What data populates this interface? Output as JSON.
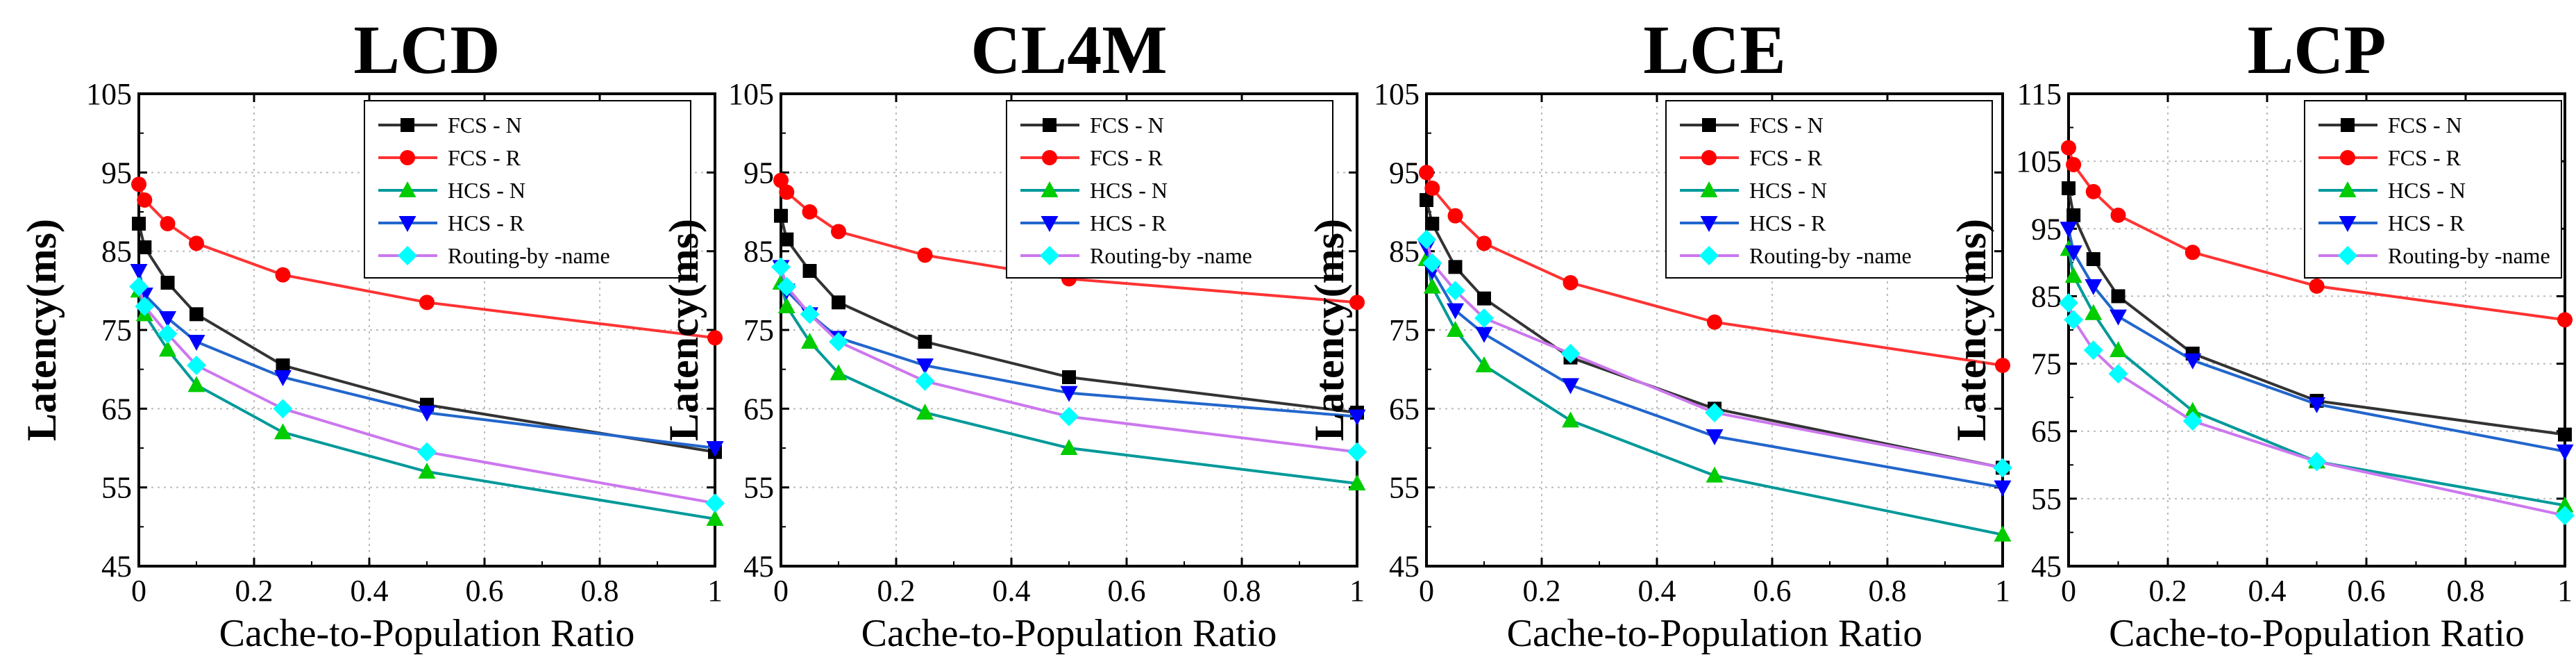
{
  "chart_data": [
    {
      "type": "line",
      "title": "LCD",
      "xlabel": "Cache-to-Population Ratio",
      "ylabel": "Latency(ms)",
      "xlim": [
        0,
        1
      ],
      "ylim": [
        45,
        105
      ],
      "xticks": [
        0,
        0.2,
        0.4,
        0.6,
        0.8,
        1
      ],
      "xtick_labels": [
        "0",
        "0.2",
        "0.4",
        "0.6",
        "0.8",
        "1"
      ],
      "yticks": [
        45,
        55,
        65,
        75,
        85,
        95,
        105
      ],
      "ytick_labels": [
        "45",
        "55",
        "65",
        "75",
        "85",
        "95",
        "105"
      ],
      "x": [
        0,
        0.01,
        0.05,
        0.1,
        0.25,
        0.5,
        1
      ],
      "series": [
        {
          "name": "FCS - N",
          "values": [
            88.5,
            85.5,
            81,
            77,
            70.5,
            65.5,
            59.5
          ]
        },
        {
          "name": "FCS - R",
          "values": [
            93.5,
            91.5,
            88.5,
            86,
            82,
            78.5,
            74
          ]
        },
        {
          "name": "HCS - N",
          "values": [
            80,
            77,
            72.5,
            68,
            62,
            57,
            51
          ]
        },
        {
          "name": "HCS - R",
          "values": [
            82.5,
            79.5,
            76.5,
            73.5,
            69,
            64.5,
            60
          ]
        },
        {
          "name": "Routing-by -name",
          "values": [
            80.5,
            78,
            74.5,
            70.5,
            65,
            59.5,
            53
          ]
        }
      ],
      "legend": "top-right"
    },
    {
      "type": "line",
      "title": "CL4M",
      "xlabel": "Cache-to-Population Ratio",
      "ylabel": "Latency(ms)",
      "xlim": [
        0,
        1
      ],
      "ylim": [
        45,
        105
      ],
      "xticks": [
        0,
        0.2,
        0.4,
        0.6,
        0.8,
        1
      ],
      "xtick_labels": [
        "0",
        "0.2",
        "0.4",
        "0.6",
        "0.8",
        "1"
      ],
      "yticks": [
        45,
        55,
        65,
        75,
        85,
        95,
        105
      ],
      "ytick_labels": [
        "45",
        "55",
        "65",
        "75",
        "85",
        "95",
        "105"
      ],
      "x": [
        0,
        0.01,
        0.05,
        0.1,
        0.25,
        0.5,
        1
      ],
      "series": [
        {
          "name": "FCS - N",
          "values": [
            89.5,
            86.5,
            82.5,
            78.5,
            73.5,
            69,
            64.5
          ]
        },
        {
          "name": "FCS - R",
          "values": [
            94,
            92.5,
            90,
            87.5,
            84.5,
            81.5,
            78.5
          ]
        },
        {
          "name": "HCS - N",
          "values": [
            81,
            78,
            73.5,
            69.5,
            64.5,
            60,
            55.5
          ]
        },
        {
          "name": "HCS - R",
          "values": [
            83,
            80,
            77,
            74,
            70.5,
            67,
            64
          ]
        },
        {
          "name": "Routing-by -name",
          "values": [
            83,
            80.5,
            77,
            73.5,
            68.5,
            64,
            59.5
          ]
        }
      ],
      "legend": "top-right"
    },
    {
      "type": "line",
      "title": "LCE",
      "xlabel": "Cache-to-Population Ratio",
      "ylabel": "Latency(ms)",
      "xlim": [
        0,
        1
      ],
      "ylim": [
        45,
        105
      ],
      "xticks": [
        0,
        0.2,
        0.4,
        0.6,
        0.8,
        1
      ],
      "xtick_labels": [
        "0",
        "0.2",
        "0.4",
        "0.6",
        "0.8",
        "1"
      ],
      "yticks": [
        45,
        55,
        65,
        75,
        85,
        95,
        105
      ],
      "ytick_labels": [
        "45",
        "55",
        "65",
        "75",
        "85",
        "95",
        "105"
      ],
      "x": [
        0,
        0.01,
        0.05,
        0.1,
        0.25,
        0.5,
        1
      ],
      "series": [
        {
          "name": "FCS - N",
          "values": [
            91.5,
            88.5,
            83,
            79,
            71.5,
            65,
            57.5
          ]
        },
        {
          "name": "FCS - R",
          "values": [
            95,
            93,
            89.5,
            86,
            81,
            76,
            70.5
          ]
        },
        {
          "name": "HCS - N",
          "values": [
            84,
            80.5,
            75,
            70.5,
            63.5,
            56.5,
            49
          ]
        },
        {
          "name": "HCS - R",
          "values": [
            85.5,
            82.5,
            77.5,
            74.5,
            68,
            61.5,
            55
          ]
        },
        {
          "name": "Routing-by -name",
          "values": [
            86.5,
            83.5,
            80,
            76.5,
            72,
            64.5,
            57.5
          ]
        }
      ],
      "legend": "top-right"
    },
    {
      "type": "line",
      "title": "LCP",
      "xlabel": "Cache-to-Population Ratio",
      "ylabel": "Latency(ms)",
      "xlim": [
        0,
        1
      ],
      "ylim": [
        45,
        115
      ],
      "xticks": [
        0,
        0.2,
        0.4,
        0.6,
        0.8,
        1
      ],
      "xtick_labels": [
        "0",
        "0.2",
        "0.4",
        "0.6",
        "0.8",
        "1"
      ],
      "yticks": [
        45,
        55,
        65,
        75,
        85,
        95,
        105,
        115
      ],
      "ytick_labels": [
        "45",
        "55",
        "65",
        "75",
        "85",
        "95",
        "105",
        "115"
      ],
      "x": [
        0,
        0.01,
        0.05,
        0.1,
        0.25,
        0.5,
        1
      ],
      "series": [
        {
          "name": "FCS - N",
          "values": [
            101,
            97,
            90.5,
            85,
            76.5,
            69.5,
            64.5
          ]
        },
        {
          "name": "FCS - R",
          "values": [
            107,
            104.5,
            100.5,
            97,
            91.5,
            86.5,
            81.5
          ]
        },
        {
          "name": "HCS - N",
          "values": [
            92,
            88,
            82.5,
            77,
            68,
            60.5,
            54
          ]
        },
        {
          "name": "HCS - R",
          "values": [
            95,
            91.5,
            86.5,
            82,
            75.5,
            69,
            62
          ]
        },
        {
          "name": "Routing-by -name",
          "values": [
            84,
            81.5,
            77,
            73.5,
            66.5,
            60.5,
            52.5
          ]
        }
      ],
      "legend": "top-right"
    }
  ],
  "series_styles": [
    {
      "name": "FCS - N",
      "color": "#000000",
      "marker": "square"
    },
    {
      "name": "FCS - R",
      "color": "#ff0000",
      "marker": "circle"
    },
    {
      "name": "HCS - N",
      "color": "#00cc00",
      "marker": "triangle-up"
    },
    {
      "name": "HCS - R",
      "color": "#0000ff",
      "marker": "triangle-down"
    },
    {
      "name": "Routing-by -name",
      "color": "#00ffff",
      "line_color": "#cc66ff",
      "marker": "diamond"
    }
  ],
  "line_colors": {
    "FCS - N": "#333333",
    "FCS - R": "#ff3333",
    "HCS - N": "#009999",
    "HCS - R": "#2266cc",
    "Routing-by -name": "#cc77ee"
  }
}
